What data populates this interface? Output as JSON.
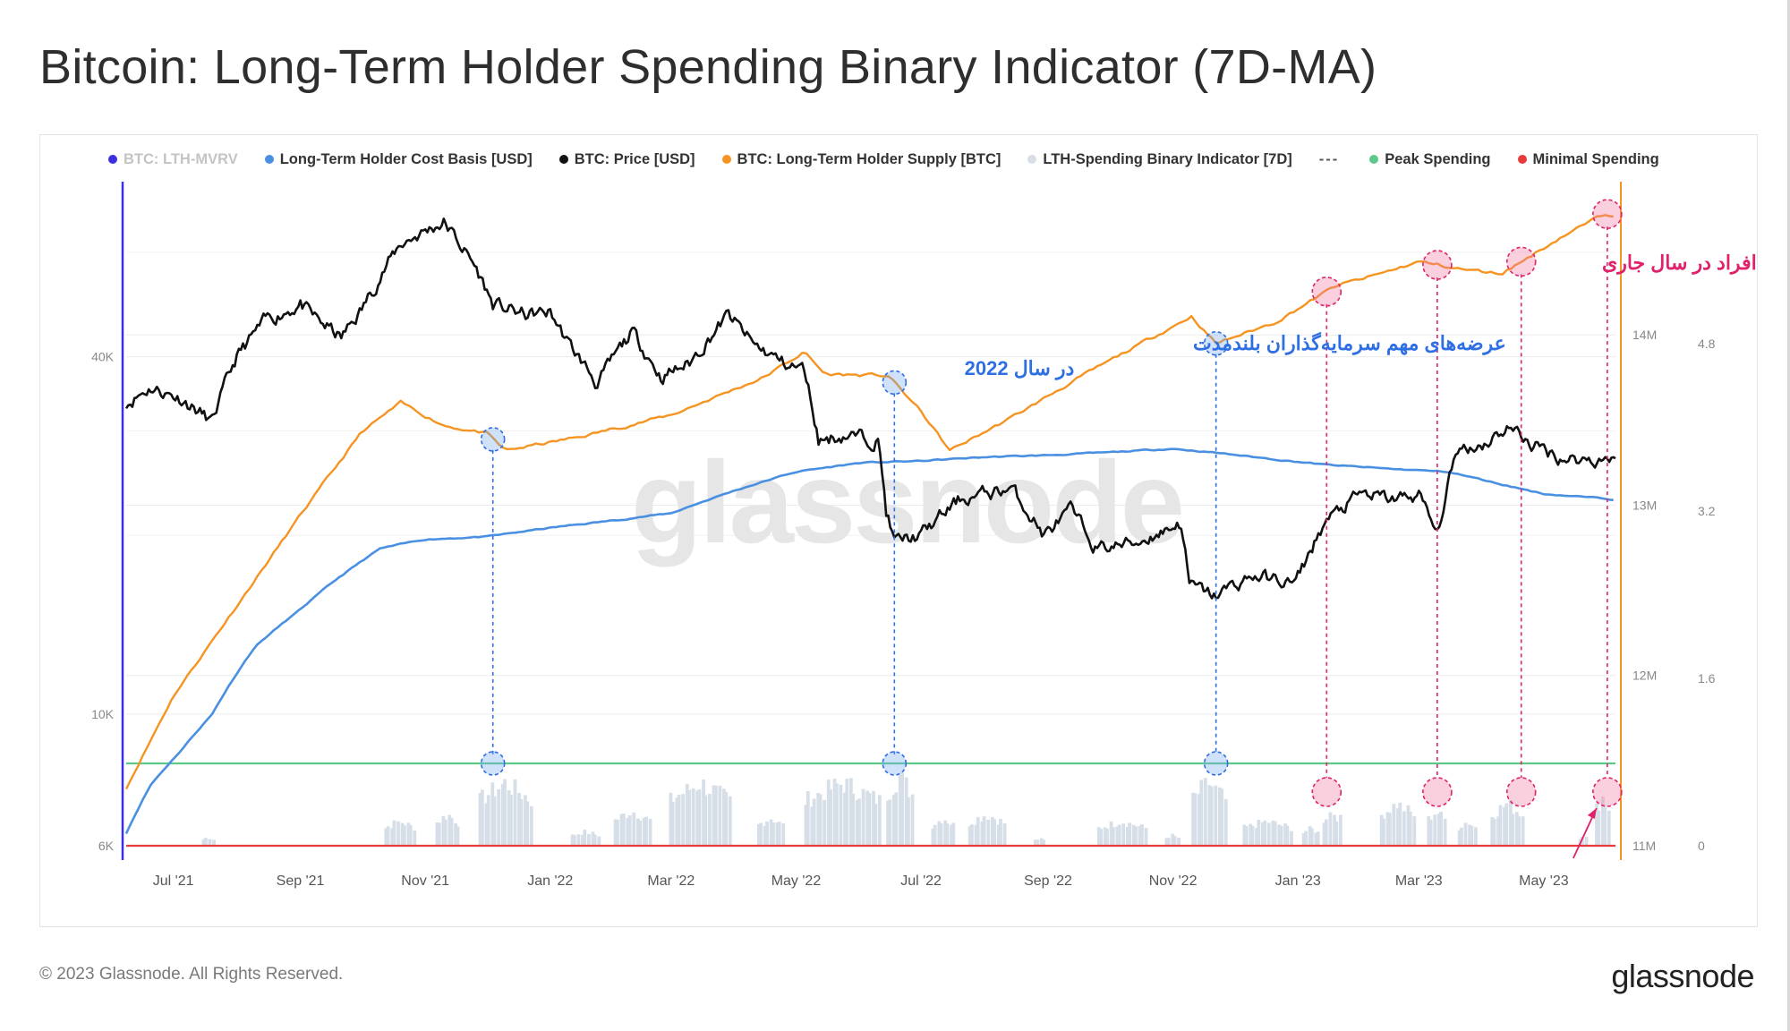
{
  "title": "Bitcoin: Long-Term Holder Spending Binary Indicator (7D-MA)",
  "footer": {
    "copyright": "© 2023 Glassnode. All Rights Reserved.",
    "logo_text": "glassnode"
  },
  "colors": {
    "lth_mvrv": "#3b2fe0",
    "cost_basis": "#4a90e2",
    "price": "#111111",
    "supply": "#f59421",
    "binary": "#d6dfe8",
    "peak": "#5cc98a",
    "minimal": "#e83a3a",
    "annotation_blue": "#2f6fe4",
    "annotation_pink": "#e0216b"
  },
  "legend": [
    {
      "label": "BTC: LTH-MVRV",
      "color": "#3b2fe0",
      "muted": true
    },
    {
      "label": "Long-Term Holder Cost Basis [USD]",
      "color": "#4a90e2",
      "muted": false
    },
    {
      "label": "BTC: Price [USD]",
      "color": "#111111",
      "muted": false
    },
    {
      "label": "BTC: Long-Term Holder Supply [BTC]",
      "color": "#f59421",
      "muted": false
    },
    {
      "label": "LTH-Spending Binary Indicator [7D]",
      "color": "#d6dfe8",
      "muted": false
    },
    {
      "label": "---",
      "color": "",
      "muted": false,
      "dashes": true
    },
    {
      "label": "Peak Spending",
      "color": "#5cc98a",
      "muted": false
    },
    {
      "label": "Minimal Spending",
      "color": "#e83a3a",
      "muted": false
    }
  ],
  "watermark": "glassnode",
  "annotations": {
    "blue_line1": "عرضه‌های مهم سرمایه‌گذاران بلندمدت",
    "blue_line2": "در سال 2022",
    "pink": "خروج مختصر و متعدد این افراد در سال جاری"
  },
  "chart_data": {
    "type": "line",
    "x_start": "2021-06-08",
    "x_end": "2023-06-05",
    "x_ticks": [
      "Jul '21",
      "Sep '21",
      "Nov '21",
      "Jan '22",
      "Mar '22",
      "May '22",
      "Jul '22",
      "Sep '22",
      "Nov '22",
      "Jan '23",
      "Mar '23",
      "May '23"
    ],
    "x_tick_dates": [
      "2021-07-01",
      "2021-09-01",
      "2021-11-01",
      "2022-01-01",
      "2022-03-01",
      "2022-05-01",
      "2022-07-01",
      "2022-09-01",
      "2022-11-01",
      "2023-01-01",
      "2023-03-01",
      "2023-05-01"
    ],
    "y_left": {
      "scale": "log",
      "ticks": [
        "6K",
        "10K",
        "40K"
      ],
      "tick_values": [
        6000,
        10000,
        40000
      ],
      "range": [
        6000,
        80000
      ]
    },
    "y_supply": {
      "ticks": [
        "11M",
        "12M",
        "13M",
        "14M"
      ],
      "tick_values": [
        11000000,
        12000000,
        13000000,
        14000000
      ],
      "range": [
        11000000,
        14900000
      ]
    },
    "y_mvrv": {
      "ticks": [
        "0",
        "1.6",
        "3.2",
        "4.8"
      ],
      "tick_values": [
        0,
        1.6,
        3.2,
        4.8
      ]
    },
    "series": [
      {
        "name": "BTC: Price [USD]",
        "dates": [
          "2021-06-08",
          "2021-06-20",
          "2021-07-05",
          "2021-07-20",
          "2021-08-01",
          "2021-08-15",
          "2021-09-01",
          "2021-09-07",
          "2021-09-21",
          "2021-10-01",
          "2021-10-20",
          "2021-11-10",
          "2021-11-25",
          "2021-12-04",
          "2021-12-20",
          "2022-01-01",
          "2022-01-10",
          "2022-01-24",
          "2022-02-10",
          "2022-02-24",
          "2022-03-10",
          "2022-03-29",
          "2022-04-10",
          "2022-04-25",
          "2022-05-05",
          "2022-05-12",
          "2022-05-25",
          "2022-06-10",
          "2022-06-14",
          "2022-06-18",
          "2022-07-01",
          "2022-07-20",
          "2022-08-01",
          "2022-08-14",
          "2022-08-30",
          "2022-09-12",
          "2022-09-25",
          "2022-10-15",
          "2022-11-05",
          "2022-11-09",
          "2022-11-21",
          "2022-12-10",
          "2022-12-31",
          "2023-01-14",
          "2023-02-01",
          "2023-02-15",
          "2023-03-01",
          "2023-03-10",
          "2023-03-20",
          "2023-04-01",
          "2023-04-14",
          "2023-04-25",
          "2023-05-10",
          "2023-05-25",
          "2023-06-05"
        ],
        "values": [
          33500,
          35500,
          34000,
          31000,
          40000,
          46000,
          49000,
          46800,
          43000,
          48000,
          62000,
          67500,
          57000,
          49000,
          47000,
          47500,
          42000,
          36000,
          44000,
          37000,
          39000,
          47000,
          42000,
          39000,
          38000,
          29000,
          29500,
          29000,
          22000,
          19500,
          20000,
          23000,
          23500,
          24000,
          20000,
          22000,
          19000,
          19500,
          21000,
          16500,
          15800,
          17100,
          16600,
          21000,
          23500,
          23000,
          23400,
          20000,
          28000,
          28500,
          30500,
          28500,
          27000,
          26800,
          27200
        ]
      },
      {
        "name": "Long-Term Holder Cost Basis [USD]",
        "dates": [
          "2021-06-08",
          "2021-06-20",
          "2021-07-05",
          "2021-07-20",
          "2021-08-10",
          "2021-09-01",
          "2021-09-20",
          "2021-10-10",
          "2021-11-01",
          "2021-12-01",
          "2022-01-01",
          "2022-02-01",
          "2022-03-01",
          "2022-04-01",
          "2022-05-01",
          "2022-06-01",
          "2022-07-01",
          "2022-08-01",
          "2022-09-01",
          "2022-10-01",
          "2022-11-01",
          "2022-11-25",
          "2022-12-15",
          "2023-01-15",
          "2023-02-15",
          "2023-03-15",
          "2023-04-10",
          "2023-05-01",
          "2023-06-05"
        ],
        "values": [
          6300,
          7600,
          8700,
          10000,
          13000,
          15000,
          17000,
          19000,
          19700,
          19900,
          20600,
          21200,
          21800,
          23800,
          25600,
          26500,
          26700,
          27100,
          27300,
          27600,
          28000,
          27500,
          27000,
          26300,
          25900,
          25600,
          24400,
          23500,
          23000
        ]
      },
      {
        "name": "BTC: Long-Term Holder Supply [BTC]",
        "dates": [
          "2021-06-08",
          "2021-07-01",
          "2021-08-01",
          "2021-09-01",
          "2021-10-01",
          "2021-10-20",
          "2021-11-10",
          "2021-12-01",
          "2021-12-10",
          "2022-01-15",
          "2022-03-01",
          "2022-04-15",
          "2022-05-05",
          "2022-05-15",
          "2022-06-15",
          "2022-07-01",
          "2022-07-15",
          "2022-08-15",
          "2022-09-15",
          "2022-10-15",
          "2022-11-10",
          "2022-11-22",
          "2022-12-20",
          "2023-01-20",
          "2023-02-05",
          "2023-03-01",
          "2023-03-25",
          "2023-04-10",
          "2023-04-20",
          "2023-05-10",
          "2023-05-31",
          "2023-06-05"
        ],
        "values": [
          11340000,
          11880000,
          12410000,
          12940000,
          13430000,
          13600000,
          13470000,
          13420000,
          13320000,
          13400000,
          13530000,
          13750000,
          13900000,
          13770000,
          13760000,
          13550000,
          13320000,
          13520000,
          13740000,
          13940000,
          14110000,
          13950000,
          14070000,
          14290000,
          14340000,
          14430000,
          14380000,
          14360000,
          14430000,
          14580000,
          14710000,
          14710000
        ]
      },
      {
        "name": "LTH-Spending Binary Indicator [7D]",
        "periods": [
          {
            "start": "2021-07-15",
            "end": "2021-07-22",
            "value": 0.12
          },
          {
            "start": "2021-10-12",
            "end": "2021-10-28",
            "value": 0.35
          },
          {
            "start": "2021-11-06",
            "end": "2021-11-18",
            "value": 0.45
          },
          {
            "start": "2021-11-27",
            "end": "2021-12-24",
            "value": 0.9
          },
          {
            "start": "2022-01-11",
            "end": "2022-01-26",
            "value": 0.2
          },
          {
            "start": "2022-02-01",
            "end": "2022-02-20",
            "value": 0.5
          },
          {
            "start": "2022-02-28",
            "end": "2022-03-31",
            "value": 0.9
          },
          {
            "start": "2022-04-12",
            "end": "2022-04-26",
            "value": 0.4
          },
          {
            "start": "2022-05-05",
            "end": "2022-06-12",
            "value": 0.9
          },
          {
            "start": "2022-06-14",
            "end": "2022-06-28",
            "value": 1.0
          },
          {
            "start": "2022-07-06",
            "end": "2022-07-18",
            "value": 0.4
          },
          {
            "start": "2022-07-24",
            "end": "2022-08-12",
            "value": 0.45
          },
          {
            "start": "2022-08-25",
            "end": "2022-08-31",
            "value": 0.1
          },
          {
            "start": "2022-09-25",
            "end": "2022-10-20",
            "value": 0.35
          },
          {
            "start": "2022-10-28",
            "end": "2022-11-05",
            "value": 0.15
          },
          {
            "start": "2022-11-10",
            "end": "2022-11-28",
            "value": 0.9
          },
          {
            "start": "2022-12-05",
            "end": "2022-12-30",
            "value": 0.35
          },
          {
            "start": "2023-01-03",
            "end": "2023-01-12",
            "value": 0.25
          },
          {
            "start": "2023-01-13",
            "end": "2023-01-23",
            "value": 0.5
          },
          {
            "start": "2023-02-10",
            "end": "2023-02-28",
            "value": 0.6
          },
          {
            "start": "2023-03-05",
            "end": "2023-03-15",
            "value": 0.5
          },
          {
            "start": "2023-03-20",
            "end": "2023-03-30",
            "value": 0.35
          },
          {
            "start": "2023-04-05",
            "end": "2023-04-22",
            "value": 0.6
          },
          {
            "start": "2023-05-18",
            "end": "2023-05-23",
            "value": 0.15
          },
          {
            "start": "2023-05-26",
            "end": "2023-06-03",
            "value": 0.7
          }
        ]
      },
      {
        "name": "Peak Spending",
        "value": 1
      },
      {
        "name": "Minimal Spending",
        "value": 0
      }
    ],
    "events": {
      "blue": [
        "2021-12-04",
        "2022-06-18",
        "2022-11-22"
      ],
      "pink": [
        "2023-01-15",
        "2023-03-10",
        "2023-04-20",
        "2023-06-01"
      ]
    }
  }
}
